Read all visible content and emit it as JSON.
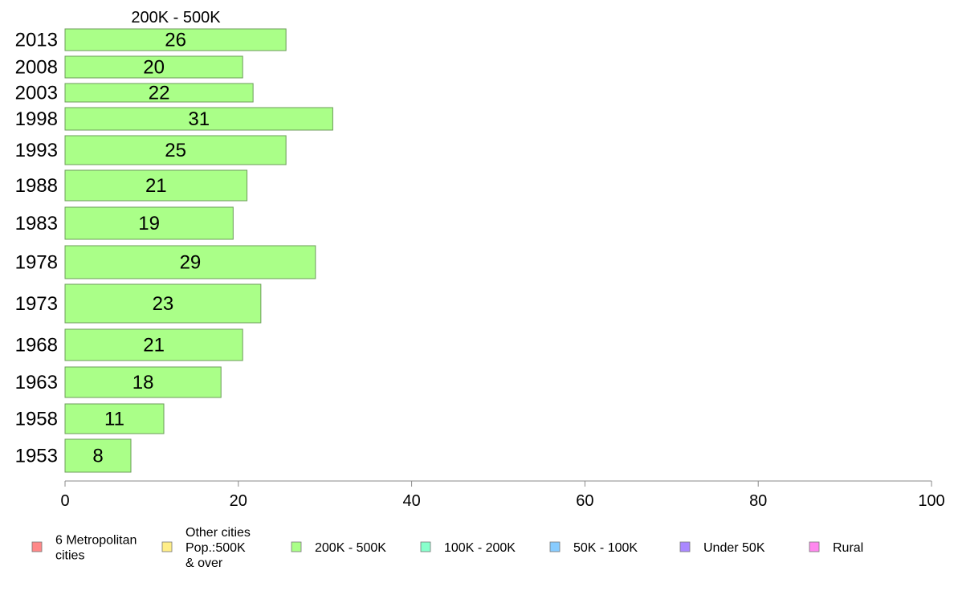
{
  "chart_data": {
    "type": "bar",
    "orientation": "horizontal",
    "title": "200K - 500K",
    "xlabel": "",
    "ylabel": "",
    "xlim": [
      0,
      100
    ],
    "x_ticks": [
      0,
      20,
      40,
      60,
      80,
      100
    ],
    "grid": false,
    "categories": [
      "2013",
      "2008",
      "2003",
      "1998",
      "1993",
      "1988",
      "1983",
      "1978",
      "1973",
      "1968",
      "1963",
      "1958",
      "1953"
    ],
    "series": [
      {
        "name": "200K - 500K",
        "color": "#aaff88",
        "values": [
          25.5,
          20.5,
          21.7,
          30.9,
          25.5,
          21.0,
          19.4,
          28.9,
          22.6,
          20.5,
          18.0,
          11.4,
          7.6
        ],
        "labels": [
          "26",
          "20",
          "22",
          "31",
          "25",
          "21",
          "19",
          "29",
          "23",
          "21",
          "18",
          "11",
          "8"
        ]
      }
    ],
    "legend": {
      "placement": "bottom",
      "entries": [
        {
          "lines": [
            "6 Metropolitan",
            " cities"
          ],
          "color": "#ff8888"
        },
        {
          "lines": [
            "Other cities",
            "Pop.:500K",
            " & over"
          ],
          "color": "#ffee88"
        },
        {
          "lines": [
            "200K - 500K"
          ],
          "color": "#aaff88"
        },
        {
          "lines": [
            "100K - 200K"
          ],
          "color": "#88ffcc"
        },
        {
          "lines": [
            "50K - 100K"
          ],
          "color": "#88ccff"
        },
        {
          "lines": [
            "Under 50K"
          ],
          "color": "#aa88ff"
        },
        {
          "lines": [
            "Rural"
          ],
          "color": "#ff88ee"
        }
      ]
    }
  }
}
